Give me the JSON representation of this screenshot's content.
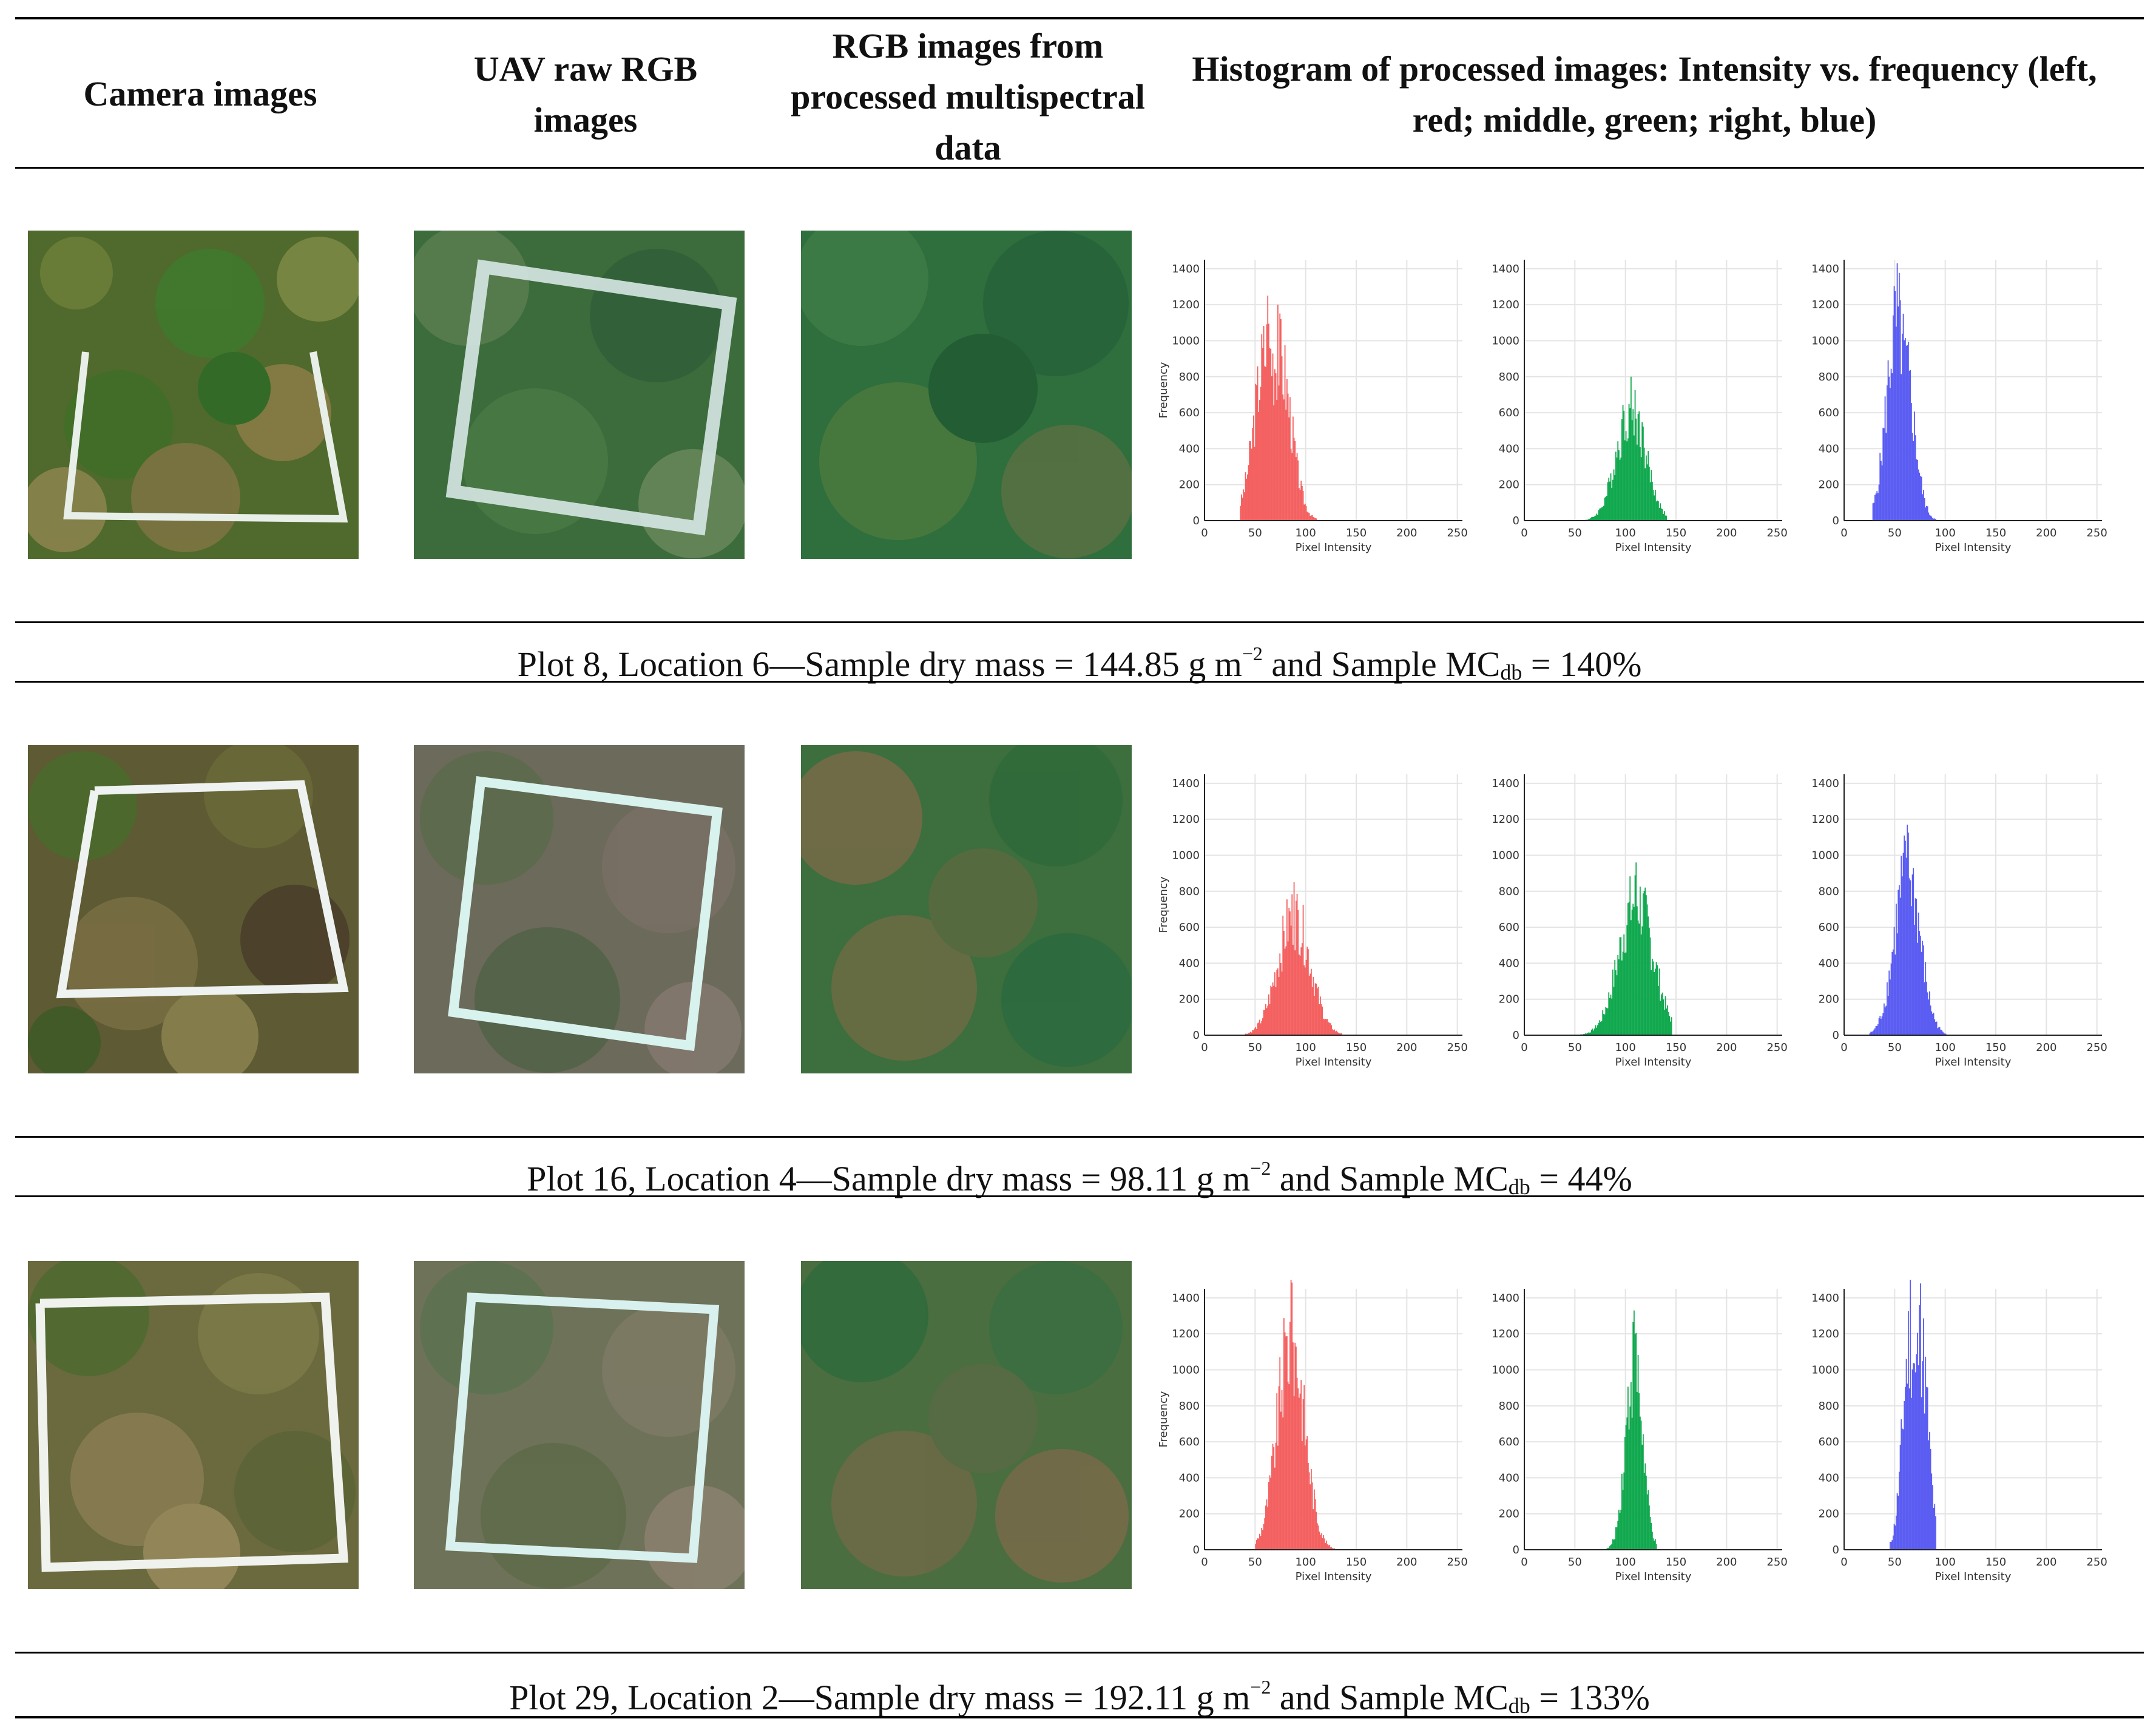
{
  "header": {
    "col1": "Camera images",
    "col2": "UAV raw RGB images",
    "col3": "RGB images from processed multispectral data",
    "col4": "Histogram of processed images: Intensity vs. frequency (left, red; middle, green; right, blue)"
  },
  "rows": [
    {
      "caption": {
        "pre": "Plot 8, Location 6—Sample dry mass = 144.85 g m",
        "sup": "−2",
        "mid": " and Sample MC",
        "sub": "db",
        "post": " = 140%"
      }
    },
    {
      "caption": {
        "pre": "Plot 16, Location 4—Sample dry mass = 98.11 g m",
        "sup": "−2",
        "mid": " and Sample MC",
        "sub": "db",
        "post": " = 44%"
      }
    },
    {
      "caption": {
        "pre": "Plot 29, Location 2—Sample dry mass = 192.11 g m",
        "sup": "−2",
        "mid": " and Sample MC",
        "sub": "db",
        "post": " = 133%"
      }
    }
  ],
  "histogram_axes": {
    "xlabel": "Pixel Intensity",
    "ylabel": "Frequency",
    "xticks": [
      "0",
      "50",
      "100",
      "150",
      "200",
      "250"
    ],
    "yticks": [
      "0",
      "200",
      "400",
      "600",
      "800",
      "1000",
      "1200",
      "1400"
    ]
  },
  "colors": {
    "red": "#f46060",
    "green": "#11a84e",
    "blue": "#5a5cf2"
  },
  "chart_data": [
    {
      "type": "bar",
      "panel": "row1-red",
      "xlabel": "Pixel Intensity",
      "ylabel": "Frequency",
      "xlim": [
        0,
        255
      ],
      "ylim": [
        0,
        1450
      ],
      "color": "#f46060",
      "peaks": [
        [
          62,
          1250
        ],
        [
          72,
          1200
        ]
      ],
      "range": [
        35,
        110
      ]
    },
    {
      "type": "bar",
      "panel": "row1-green",
      "xlabel": "Pixel Intensity",
      "ylabel": "Frequency",
      "xlim": [
        0,
        255
      ],
      "ylim": [
        0,
        1450
      ],
      "color": "#11a84e",
      "peaks": [
        [
          105,
          800
        ]
      ],
      "range": [
        55,
        140
      ]
    },
    {
      "type": "bar",
      "panel": "row1-blue",
      "xlabel": "Pixel Intensity",
      "ylabel": "Frequency",
      "xlim": [
        0,
        255
      ],
      "ylim": [
        0,
        1450
      ],
      "color": "#5a5cf2",
      "peaks": [
        [
          52,
          1430
        ],
        [
          58,
          1150
        ]
      ],
      "range": [
        28,
        90
      ]
    },
    {
      "type": "bar",
      "panel": "row2-red",
      "xlabel": "Pixel Intensity",
      "ylabel": "Frequency",
      "xlim": [
        0,
        255
      ],
      "ylim": [
        0,
        1450
      ],
      "color": "#f46060",
      "peaks": [
        [
          88,
          850
        ]
      ],
      "range": [
        40,
        135
      ]
    },
    {
      "type": "bar",
      "panel": "row2-green",
      "xlabel": "Pixel Intensity",
      "ylabel": "Frequency",
      "xlim": [
        0,
        255
      ],
      "ylim": [
        0,
        1450
      ],
      "color": "#11a84e",
      "peaks": [
        [
          110,
          960
        ]
      ],
      "range": [
        45,
        145
      ]
    },
    {
      "type": "bar",
      "panel": "row2-blue",
      "xlabel": "Pixel Intensity",
      "ylabel": "Frequency",
      "xlim": [
        0,
        255
      ],
      "ylim": [
        0,
        1450
      ],
      "color": "#5a5cf2",
      "peaks": [
        [
          62,
          1170
        ]
      ],
      "range": [
        25,
        100
      ]
    },
    {
      "type": "bar",
      "panel": "row3-red",
      "xlabel": "Pixel Intensity",
      "ylabel": "Frequency",
      "xlim": [
        0,
        255
      ],
      "ylim": [
        0,
        1450
      ],
      "color": "#f46060",
      "peaks": [
        [
          85,
          1500
        ]
      ],
      "range": [
        50,
        130
      ]
    },
    {
      "type": "bar",
      "panel": "row3-green",
      "xlabel": "Pixel Intensity",
      "ylabel": "Frequency",
      "xlim": [
        0,
        255
      ],
      "ylim": [
        0,
        1450
      ],
      "color": "#11a84e",
      "peaks": [
        [
          108,
          1330
        ]
      ],
      "range": [
        80,
        130
      ]
    },
    {
      "type": "bar",
      "panel": "row3-blue",
      "xlabel": "Pixel Intensity",
      "ylabel": "Frequency",
      "xlim": [
        0,
        255
      ],
      "ylim": [
        0,
        1450
      ],
      "color": "#5a5cf2",
      "peaks": [
        [
          65,
          1500
        ],
        [
          75,
          1480
        ]
      ],
      "range": [
        45,
        90
      ]
    }
  ]
}
